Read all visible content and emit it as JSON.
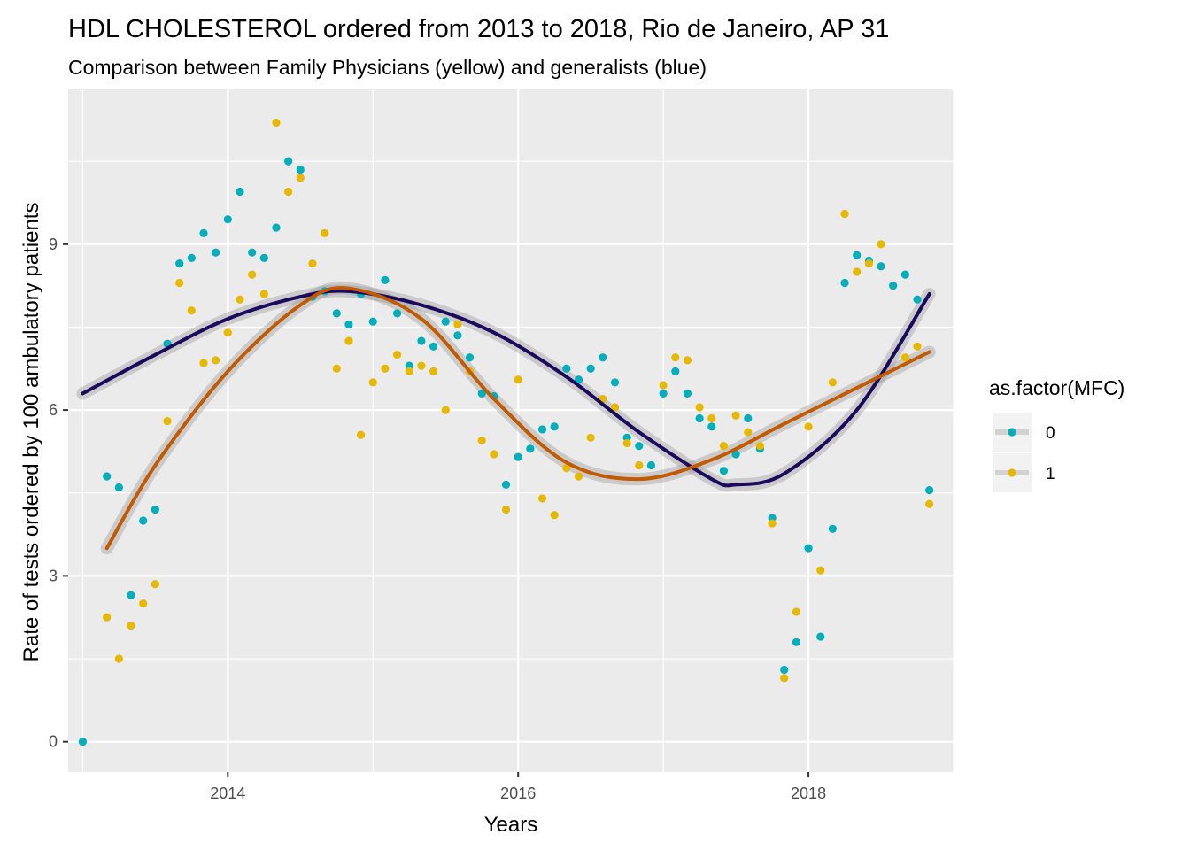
{
  "chart_data": {
    "type": "scatter",
    "title": "HDL CHOLESTEROL ordered from 2013 to 2018, Rio de Janeiro, AP 31",
    "subtitle": "Comparison between Family Physicians (yellow) and generalists (blue)",
    "xlabel": "Years",
    "ylabel": "Rate of tests ordered by 100 ambulatory patients",
    "xlim": [
      2012.9,
      2019.0
    ],
    "ylim": [
      -0.55,
      11.8
    ],
    "x_ticks": [
      2014,
      2016,
      2018
    ],
    "x_tick_labels": [
      "2014",
      "2016",
      "2018"
    ],
    "y_ticks": [
      0,
      3,
      6,
      9
    ],
    "y_tick_labels": [
      "0",
      "3",
      "6",
      "9"
    ],
    "grid": true,
    "legend": {
      "title": "as.factor(MFC)",
      "position": "right",
      "entries": [
        {
          "label": "0",
          "color": "#00AFBB"
        },
        {
          "label": "1",
          "color": "#E7B800"
        }
      ]
    },
    "series": [
      {
        "name": "0",
        "color": "#00AFBB",
        "points": [
          [
            "2013-01-01",
            0.0
          ],
          [
            "2013-03-01",
            4.8
          ],
          [
            "2013-04-01",
            4.6
          ],
          [
            "2013-05-01",
            2.65
          ],
          [
            "2013-06-01",
            4.0
          ],
          [
            "2013-07-01",
            4.2
          ],
          [
            "2013-08-01",
            7.2
          ],
          [
            "2013-09-01",
            8.65
          ],
          [
            "2013-10-01",
            8.75
          ],
          [
            "2013-11-01",
            9.2
          ],
          [
            "2013-12-01",
            8.85
          ],
          [
            "2014-01-01",
            9.45
          ],
          [
            "2014-02-01",
            9.95
          ],
          [
            "2014-03-01",
            8.85
          ],
          [
            "2014-04-01",
            8.75
          ],
          [
            "2014-05-01",
            9.3
          ],
          [
            "2014-06-01",
            10.5
          ],
          [
            "2014-07-01",
            10.35
          ],
          [
            "2014-08-01",
            8.05
          ],
          [
            "2014-09-01",
            8.15
          ],
          [
            "2014-10-01",
            7.75
          ],
          [
            "2014-11-01",
            7.55
          ],
          [
            "2014-12-01",
            8.1
          ],
          [
            "2015-01-01",
            7.6
          ],
          [
            "2015-02-01",
            8.35
          ],
          [
            "2015-03-01",
            7.75
          ],
          [
            "2015-04-01",
            6.8
          ],
          [
            "2015-05-01",
            7.25
          ],
          [
            "2015-06-01",
            7.15
          ],
          [
            "2015-07-01",
            7.6
          ],
          [
            "2015-08-01",
            7.35
          ],
          [
            "2015-09-01",
            6.95
          ],
          [
            "2015-10-01",
            6.3
          ],
          [
            "2015-11-01",
            6.25
          ],
          [
            "2015-12-01",
            4.65
          ],
          [
            "2016-01-01",
            5.15
          ],
          [
            "2016-02-01",
            5.3
          ],
          [
            "2016-03-01",
            5.65
          ],
          [
            "2016-04-01",
            5.7
          ],
          [
            "2016-05-01",
            6.75
          ],
          [
            "2016-06-01",
            6.55
          ],
          [
            "2016-07-01",
            6.75
          ],
          [
            "2016-08-01",
            6.95
          ],
          [
            "2016-09-01",
            6.5
          ],
          [
            "2016-10-01",
            5.5
          ],
          [
            "2016-11-01",
            5.35
          ],
          [
            "2016-12-01",
            5.0
          ],
          [
            "2017-01-01",
            6.3
          ],
          [
            "2017-02-01",
            6.7
          ],
          [
            "2017-03-01",
            6.3
          ],
          [
            "2017-04-01",
            5.85
          ],
          [
            "2017-05-01",
            5.7
          ],
          [
            "2017-06-01",
            4.9
          ],
          [
            "2017-07-01",
            5.2
          ],
          [
            "2017-08-01",
            5.85
          ],
          [
            "2017-09-01",
            5.3
          ],
          [
            "2017-10-01",
            4.05
          ],
          [
            "2017-11-01",
            1.3
          ],
          [
            "2017-12-01",
            1.8
          ],
          [
            "2018-01-01",
            3.5
          ],
          [
            "2018-02-01",
            1.9
          ],
          [
            "2018-03-01",
            3.85
          ],
          [
            "2018-04-01",
            8.3
          ],
          [
            "2018-05-01",
            8.8
          ],
          [
            "2018-06-01",
            8.7
          ],
          [
            "2018-07-01",
            8.6
          ],
          [
            "2018-08-01",
            8.25
          ],
          [
            "2018-09-01",
            8.45
          ],
          [
            "2018-10-01",
            8.0
          ],
          [
            "2018-11-01",
            4.55
          ]
        ]
      },
      {
        "name": "1",
        "color": "#E7B800",
        "points": [
          [
            "2013-03-01",
            2.25
          ],
          [
            "2013-04-01",
            1.5
          ],
          [
            "2013-05-01",
            2.1
          ],
          [
            "2013-06-01",
            2.5
          ],
          [
            "2013-07-01",
            2.85
          ],
          [
            "2013-08-01",
            5.8
          ],
          [
            "2013-09-01",
            8.3
          ],
          [
            "2013-10-01",
            7.8
          ],
          [
            "2013-11-01",
            6.85
          ],
          [
            "2013-12-01",
            6.9
          ],
          [
            "2014-01-01",
            7.4
          ],
          [
            "2014-02-01",
            8.0
          ],
          [
            "2014-03-01",
            8.45
          ],
          [
            "2014-04-01",
            8.1
          ],
          [
            "2014-05-01",
            11.2
          ],
          [
            "2014-06-01",
            9.95
          ],
          [
            "2014-07-01",
            10.2
          ],
          [
            "2014-08-01",
            8.65
          ],
          [
            "2014-09-01",
            9.2
          ],
          [
            "2014-10-01",
            6.75
          ],
          [
            "2014-11-01",
            7.25
          ],
          [
            "2014-12-01",
            5.55
          ],
          [
            "2015-01-01",
            6.5
          ],
          [
            "2015-02-01",
            6.75
          ],
          [
            "2015-03-01",
            7.0
          ],
          [
            "2015-04-01",
            6.7
          ],
          [
            "2015-05-01",
            6.8
          ],
          [
            "2015-06-01",
            6.7
          ],
          [
            "2015-07-01",
            6.0
          ],
          [
            "2015-08-01",
            7.55
          ],
          [
            "2015-09-01",
            6.7
          ],
          [
            "2015-10-01",
            5.45
          ],
          [
            "2015-11-01",
            5.2
          ],
          [
            "2015-12-01",
            4.2
          ],
          [
            "2016-01-01",
            6.55
          ],
          [
            "2016-03-01",
            4.4
          ],
          [
            "2016-04-01",
            4.1
          ],
          [
            "2016-05-01",
            4.95
          ],
          [
            "2016-06-01",
            4.8
          ],
          [
            "2016-07-01",
            5.5
          ],
          [
            "2016-08-01",
            6.2
          ],
          [
            "2016-09-01",
            6.05
          ],
          [
            "2016-10-01",
            5.4
          ],
          [
            "2016-11-01",
            5.0
          ],
          [
            "2017-01-01",
            6.45
          ],
          [
            "2017-02-01",
            6.95
          ],
          [
            "2017-03-01",
            6.9
          ],
          [
            "2017-04-01",
            6.05
          ],
          [
            "2017-05-01",
            5.85
          ],
          [
            "2017-06-01",
            5.35
          ],
          [
            "2017-07-01",
            5.9
          ],
          [
            "2017-08-01",
            5.6
          ],
          [
            "2017-09-01",
            5.35
          ],
          [
            "2017-10-01",
            3.95
          ],
          [
            "2017-11-01",
            1.15
          ],
          [
            "2017-12-01",
            2.35
          ],
          [
            "2018-01-01",
            5.7
          ],
          [
            "2018-02-01",
            3.1
          ],
          [
            "2018-03-01",
            6.5
          ],
          [
            "2018-04-01",
            9.55
          ],
          [
            "2018-05-01",
            8.5
          ],
          [
            "2018-06-01",
            8.65
          ],
          [
            "2018-07-01",
            9.0
          ],
          [
            "2018-09-01",
            6.95
          ],
          [
            "2018-10-01",
            7.15
          ],
          [
            "2018-11-01",
            4.3
          ]
        ]
      }
    ],
    "smooth_lines": [
      {
        "name": "0",
        "color": "#1a0a5e",
        "points": [
          [
            "2013-01-01",
            6.3
          ],
          [
            "2013-07-01",
            7.0
          ],
          [
            "2014-01-01",
            7.65
          ],
          [
            "2014-07-01",
            8.05
          ],
          [
            "2014-11-01",
            8.15
          ],
          [
            "2015-05-01",
            7.9
          ],
          [
            "2015-11-01",
            7.4
          ],
          [
            "2016-05-01",
            6.6
          ],
          [
            "2016-11-01",
            5.6
          ],
          [
            "2017-05-01",
            4.75
          ],
          [
            "2017-07-01",
            4.65
          ],
          [
            "2017-11-01",
            4.85
          ],
          [
            "2018-05-01",
            6.0
          ],
          [
            "2018-11-01",
            8.1
          ]
        ]
      },
      {
        "name": "1",
        "color": "#c45a00",
        "points": [
          [
            "2013-03-01",
            3.5
          ],
          [
            "2013-07-01",
            5.0
          ],
          [
            "2014-01-01",
            6.7
          ],
          [
            "2014-07-01",
            7.9
          ],
          [
            "2014-11-01",
            8.2
          ],
          [
            "2015-05-01",
            7.65
          ],
          [
            "2015-11-01",
            6.2
          ],
          [
            "2016-05-01",
            5.05
          ],
          [
            "2016-11-01",
            4.75
          ],
          [
            "2017-05-01",
            5.1
          ],
          [
            "2017-11-01",
            5.75
          ],
          [
            "2018-05-01",
            6.4
          ],
          [
            "2018-11-01",
            7.05
          ]
        ]
      }
    ]
  }
}
